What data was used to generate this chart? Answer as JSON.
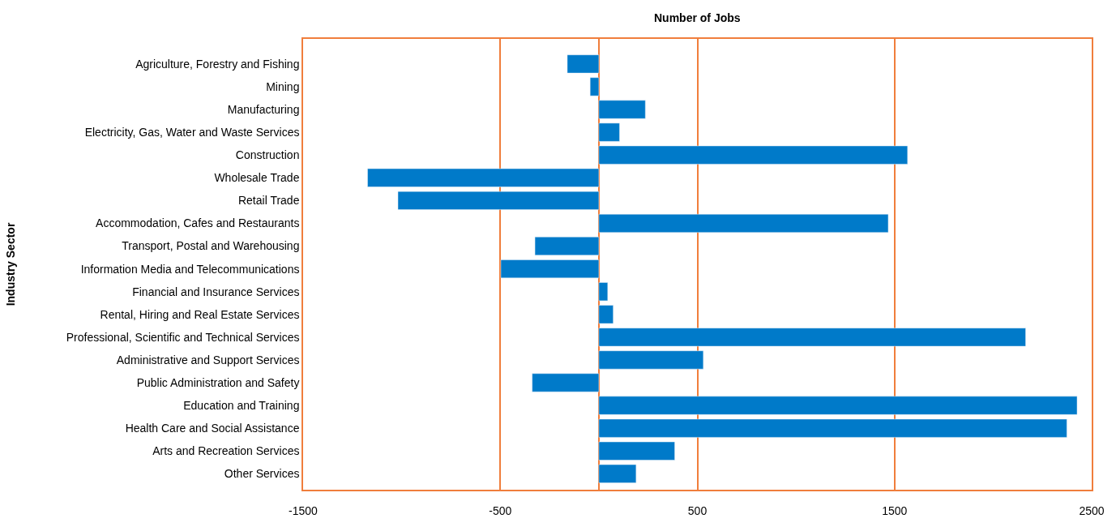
{
  "chart_data": {
    "type": "bar",
    "orientation": "horizontal",
    "xlabel": "Number of Jobs",
    "ylabel": "Industry Sector",
    "categories": [
      "Agriculture, Forestry and Fishing",
      "Mining",
      "Manufacturing",
      "Electricity, Gas, Water and Waste Services",
      "Construction",
      "Wholesale Trade",
      "Retail Trade",
      "Accommodation, Cafes and Restaurants",
      "Transport, Postal and Warehousing",
      "Information Media and Telecommunications",
      "Financial and Insurance Services",
      "Rental, Hiring and Real Estate Services",
      "Professional, Scientific and Technical Services",
      "Administrative and Support Services",
      "Public Administration and Safety",
      "Education and Training",
      "Health Care and Social Assistance",
      "Arts and Recreation Services",
      "Other Services"
    ],
    "values": [
      -160,
      -44,
      236,
      105,
      1566,
      -1173,
      -1019,
      1468,
      -324,
      -497,
      45,
      73,
      2165,
      530,
      -338,
      2426,
      2374,
      385,
      189
    ],
    "color": "#007ac9",
    "xlim": [
      -1500,
      2500
    ],
    "xticks": [
      -1500,
      -500,
      500,
      1500,
      2500
    ],
    "grid": "x",
    "legend": false
  }
}
